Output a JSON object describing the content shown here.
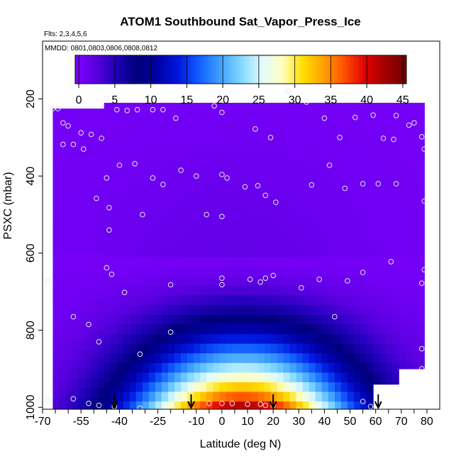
{
  "chart_data": {
    "type": "heatmap",
    "title": "ATOM1 Southbound Sat_Vapor_Press_Ice",
    "flights_label": "Flts: 2,3,4,5,6",
    "dates_label": "MMDD: 0801,0803,0806,0808,0812",
    "xlabel": "Latitude (deg N)",
    "ylabel": "PSXC (mbar)",
    "xlim": [
      -70,
      85
    ],
    "ylim": [
      1005,
      50
    ],
    "y_inverted": true,
    "x_ticks": [
      -70,
      -55,
      -40,
      -25,
      -10,
      0,
      10,
      20,
      30,
      40,
      50,
      60,
      70,
      80
    ],
    "y_ticks": [
      200,
      400,
      600,
      800,
      1000
    ],
    "colorbar": {
      "min": -0.5,
      "max": 45.5,
      "ticks": [
        0,
        5,
        10,
        15,
        20,
        25,
        30,
        35,
        40,
        45
      ],
      "colors": [
        "#7F00FF",
        "#5A00E0",
        "#1E00B8",
        "#00007A",
        "#0000A8",
        "#0018E0",
        "#1060FF",
        "#40A0FF",
        "#80D8FF",
        "#E0FAFF",
        "#FFFFC0",
        "#FFE000",
        "#FFA000",
        "#FF5000",
        "#E00000",
        "#A00000",
        "#700000"
      ]
    },
    "grid": false,
    "field_model": "value = 0.3 + 52 * exp(-((lat-8)/44)^2) * (pressure>=600 ? ((pressure-600)/450)^1.9 : 0)",
    "lat_extent": [
      -66,
      79
    ],
    "pressure_extent": [
      210,
      1005
    ],
    "sample_points": [
      {
        "lat": -66,
        "p": 225
      },
      {
        "lat": -64,
        "p": 225
      },
      {
        "lat": -62,
        "p": 262
      },
      {
        "lat": -60,
        "p": 270
      },
      {
        "lat": -55,
        "p": 288
      },
      {
        "lat": -54,
        "p": 330
      },
      {
        "lat": -51,
        "p": 292
      },
      {
        "lat": -47,
        "p": 302
      },
      {
        "lat": -45,
        "p": 198
      },
      {
        "lat": -41,
        "p": 228
      },
      {
        "lat": -37,
        "p": 230
      },
      {
        "lat": -33,
        "p": 228
      },
      {
        "lat": -27,
        "p": 228
      },
      {
        "lat": -23,
        "p": 228
      },
      {
        "lat": -18,
        "p": 250
      },
      {
        "lat": -3,
        "p": 218
      },
      {
        "lat": 0,
        "p": 235
      },
      {
        "lat": 13,
        "p": 278
      },
      {
        "lat": 19,
        "p": 300
      },
      {
        "lat": 26,
        "p": 180
      },
      {
        "lat": 33,
        "p": 208
      },
      {
        "lat": 40,
        "p": 250
      },
      {
        "lat": 46,
        "p": 300
      },
      {
        "lat": 52,
        "p": 248
      },
      {
        "lat": 59,
        "p": 242
      },
      {
        "lat": 63,
        "p": 302
      },
      {
        "lat": 67,
        "p": 305
      },
      {
        "lat": 68,
        "p": 243
      },
      {
        "lat": 73,
        "p": 268
      },
      {
        "lat": 75,
        "p": 262
      },
      {
        "lat": 78,
        "p": 298
      },
      {
        "lat": 79,
        "p": 330
      },
      {
        "lat": -62,
        "p": 318
      },
      {
        "lat": -58,
        "p": 318
      },
      {
        "lat": -40,
        "p": 372
      },
      {
        "lat": -34,
        "p": 368
      },
      {
        "lat": -27,
        "p": 405
      },
      {
        "lat": -23,
        "p": 422
      },
      {
        "lat": -16,
        "p": 385
      },
      {
        "lat": -10,
        "p": 400
      },
      {
        "lat": -45,
        "p": 405
      },
      {
        "lat": 0,
        "p": 396
      },
      {
        "lat": 2,
        "p": 405
      },
      {
        "lat": 9,
        "p": 428
      },
      {
        "lat": 14,
        "p": 425
      },
      {
        "lat": 17,
        "p": 450
      },
      {
        "lat": 21,
        "p": 468
      },
      {
        "lat": 35,
        "p": 423
      },
      {
        "lat": 42,
        "p": 372
      },
      {
        "lat": 48,
        "p": 432
      },
      {
        "lat": 55,
        "p": 420
      },
      {
        "lat": 61,
        "p": 420
      },
      {
        "lat": 68,
        "p": 420
      },
      {
        "lat": 79,
        "p": 465
      },
      {
        "lat": -49,
        "p": 458
      },
      {
        "lat": -44,
        "p": 482
      },
      {
        "lat": -31,
        "p": 500
      },
      {
        "lat": -6,
        "p": 500
      },
      {
        "lat": 0,
        "p": 505
      },
      {
        "lat": -44,
        "p": 540
      },
      {
        "lat": -45,
        "p": 638
      },
      {
        "lat": -43,
        "p": 655
      },
      {
        "lat": -38,
        "p": 702
      },
      {
        "lat": -20,
        "p": 682
      },
      {
        "lat": 0,
        "p": 665
      },
      {
        "lat": 0,
        "p": 682
      },
      {
        "lat": 11,
        "p": 668
      },
      {
        "lat": 15,
        "p": 675
      },
      {
        "lat": 17,
        "p": 665
      },
      {
        "lat": 20,
        "p": 658
      },
      {
        "lat": 31,
        "p": 690
      },
      {
        "lat": 38,
        "p": 668
      },
      {
        "lat": 49,
        "p": 672
      },
      {
        "lat": 55,
        "p": 650
      },
      {
        "lat": 66,
        "p": 622
      },
      {
        "lat": 79,
        "p": 643
      },
      {
        "lat": 78,
        "p": 678
      },
      {
        "lat": -68,
        "p": 672
      },
      {
        "lat": -58,
        "p": 765
      },
      {
        "lat": -52,
        "p": 785
      },
      {
        "lat": -48,
        "p": 830
      },
      {
        "lat": -20,
        "p": 805
      },
      {
        "lat": -32,
        "p": 862
      },
      {
        "lat": 44,
        "p": 765
      },
      {
        "lat": 78,
        "p": 848
      },
      {
        "lat": 78,
        "p": 900
      },
      {
        "lat": -68,
        "p": 982
      },
      {
        "lat": -58,
        "p": 978
      },
      {
        "lat": -52,
        "p": 990
      },
      {
        "lat": -48,
        "p": 995
      },
      {
        "lat": -42,
        "p": 998
      },
      {
        "lat": -32,
        "p": 1002
      },
      {
        "lat": -5,
        "p": 990
      },
      {
        "lat": 0,
        "p": 990
      },
      {
        "lat": 4,
        "p": 990
      },
      {
        "lat": 10,
        "p": 992
      },
      {
        "lat": 15,
        "p": 992
      },
      {
        "lat": 17,
        "p": 995
      },
      {
        "lat": 20,
        "p": 995
      },
      {
        "lat": 30,
        "p": 1005
      },
      {
        "lat": 55,
        "p": 985
      },
      {
        "lat": 58,
        "p": 998
      }
    ],
    "arrow_markers": [
      -42,
      -12,
      20,
      61
    ]
  }
}
